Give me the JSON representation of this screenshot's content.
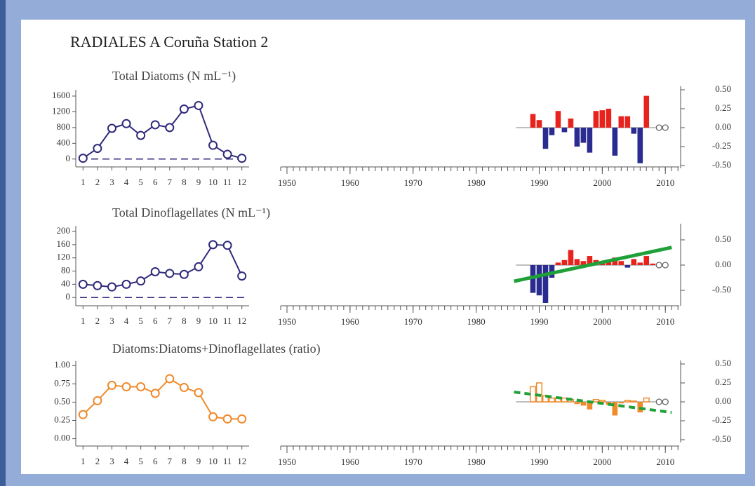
{
  "title": "RADIALES A Coruña Station 2",
  "chart_data": [
    {
      "type": "line",
      "title": "Total Diatoms (N mL⁻¹)",
      "categories": [
        "1",
        "2",
        "3",
        "4",
        "5",
        "6",
        "7",
        "8",
        "9",
        "10",
        "11",
        "12"
      ],
      "values": [
        20,
        270,
        780,
        900,
        600,
        870,
        800,
        1270,
        1360,
        350,
        120,
        20
      ],
      "color": "#2e2a7a",
      "ylim": [
        -200,
        1760
      ],
      "yticks": [
        0,
        400,
        800,
        1200,
        1600
      ],
      "zero_line": true
    },
    {
      "type": "bar",
      "x": [
        1989,
        1990,
        1991,
        1992,
        1993,
        1994,
        1995,
        1996,
        1997,
        1998,
        1999,
        2000,
        2001,
        2002,
        2003,
        2004,
        2005,
        2006,
        2007,
        2008,
        2009,
        2010
      ],
      "values": [
        0.18,
        0.1,
        -0.28,
        -0.1,
        0.22,
        -0.06,
        0.12,
        -0.25,
        -0.2,
        -0.33,
        0.22,
        0.23,
        0.25,
        -0.37,
        0.15,
        0.15,
        -0.08,
        -0.47,
        0.42,
        0,
        null,
        null
      ],
      "positive_color": "#e8231e",
      "negative_color": "#2b2c8f",
      "positive_open": false,
      "xlim": [
        1949,
        2012.2
      ],
      "xticks": [
        1950,
        1960,
        1970,
        1980,
        1990,
        2000,
        2010
      ],
      "minor_xticks": true,
      "ylim": [
        -0.5,
        0.5
      ],
      "yticks": [
        {
          "value": 0.5,
          "label": "0.50"
        },
        {
          "value": 0.25,
          "label": "0.25"
        },
        {
          "value": 0,
          "label": "0.00"
        },
        {
          "value": -0.25,
          "label": "-0.25"
        },
        {
          "value": -0.5,
          "label": "-0.50"
        }
      ]
    },
    {
      "type": "line",
      "title": "Total Dinoflagellates (N mL⁻¹)",
      "categories": [
        "1",
        "2",
        "3",
        "4",
        "5",
        "6",
        "7",
        "8",
        "9",
        "10",
        "11",
        "12"
      ],
      "values": [
        40,
        36,
        32,
        40,
        50,
        78,
        73,
        70,
        93,
        160,
        158,
        65
      ],
      "color": "#2e2a7a",
      "ylim": [
        -25,
        217
      ],
      "yticks": [
        0,
        40,
        80,
        120,
        160,
        200
      ],
      "zero_line": true
    },
    {
      "type": "bar",
      "x": [
        1989,
        1990,
        1991,
        1992,
        1993,
        1994,
        1995,
        1996,
        1997,
        1998,
        1999,
        2000,
        2001,
        2002,
        2003,
        2004,
        2005,
        2006,
        2007,
        2008,
        2009,
        2010
      ],
      "values": [
        -0.55,
        -0.6,
        -0.75,
        -0.25,
        0.05,
        0.1,
        0.3,
        0.12,
        0.08,
        0.18,
        0.1,
        0.05,
        0.1,
        0.15,
        0.08,
        -0.05,
        0.12,
        0.05,
        0.18,
        0.03,
        null,
        null
      ],
      "positive_color": "#e8231e",
      "negative_color": "#2b2c8f",
      "positive_open": false,
      "xlim": [
        1949,
        2012.2
      ],
      "xticks": [
        1950,
        1960,
        1970,
        1980,
        1990,
        2000,
        2010
      ],
      "minor_xticks": true,
      "ylim": [
        -0.75,
        0.75
      ],
      "yticks": [
        {
          "value": 0.5,
          "label": "0.50"
        },
        {
          "value": 0,
          "label": "0.00"
        },
        {
          "value": -0.5,
          "label": "-0.50"
        }
      ],
      "trend": {
        "x": [
          1986,
          2011
        ],
        "y": [
          -0.32,
          0.35
        ],
        "color": "#1fa038",
        "dashed": false
      }
    },
    {
      "type": "line",
      "title": "Diatoms:Diatoms+Dinoflagellates (ratio)",
      "categories": [
        "1",
        "2",
        "3",
        "4",
        "5",
        "6",
        "7",
        "8",
        "9",
        "10",
        "11",
        "12"
      ],
      "values": [
        0.33,
        0.52,
        0.73,
        0.71,
        0.71,
        0.62,
        0.82,
        0.7,
        0.63,
        0.3,
        0.27,
        0.27
      ],
      "color": "#f08a2a",
      "ylim": [
        -0.1,
        1.06
      ],
      "yticks": [
        {
          "value": 0,
          "label": "0.00"
        },
        {
          "value": 0.25,
          "label": "0.25"
        },
        {
          "value": 0.5,
          "label": "0.50"
        },
        {
          "value": 0.75,
          "label": "0.75"
        },
        {
          "value": 1,
          "label": "1.00"
        }
      ],
      "zero_line": false
    },
    {
      "type": "bar",
      "x": [
        1989,
        1990,
        1991,
        1992,
        1993,
        1994,
        1995,
        1996,
        1997,
        1998,
        1999,
        2000,
        2001,
        2002,
        2003,
        2004,
        2005,
        2006,
        2007,
        2008,
        2009,
        2010
      ],
      "values": [
        0.2,
        0.25,
        0.08,
        0.05,
        0.05,
        0.05,
        0.03,
        -0.03,
        -0.05,
        -0.1,
        0.03,
        0.02,
        -0.04,
        -0.18,
        -0.02,
        0.02,
        0.01,
        -0.14,
        0.05,
        0,
        null,
        null
      ],
      "positive_color": "#f08a2a",
      "negative_color": "#f08a2a",
      "positive_open": true,
      "xlim": [
        1949,
        2012.2
      ],
      "xticks": [
        1950,
        1960,
        1970,
        1980,
        1990,
        2000,
        2010
      ],
      "minor_xticks": true,
      "ylim": [
        -0.5,
        0.5
      ],
      "yticks": [
        {
          "value": 0.5,
          "label": "0.50"
        },
        {
          "value": 0.25,
          "label": "0.25"
        },
        {
          "value": 0,
          "label": "0.00"
        },
        {
          "value": -0.25,
          "label": "-0.25"
        },
        {
          "value": -0.5,
          "label": "-0.50"
        }
      ],
      "trend": {
        "x": [
          1986,
          2011
        ],
        "y": [
          0.13,
          -0.14
        ],
        "color": "#1fa038",
        "dashed": true
      }
    }
  ]
}
